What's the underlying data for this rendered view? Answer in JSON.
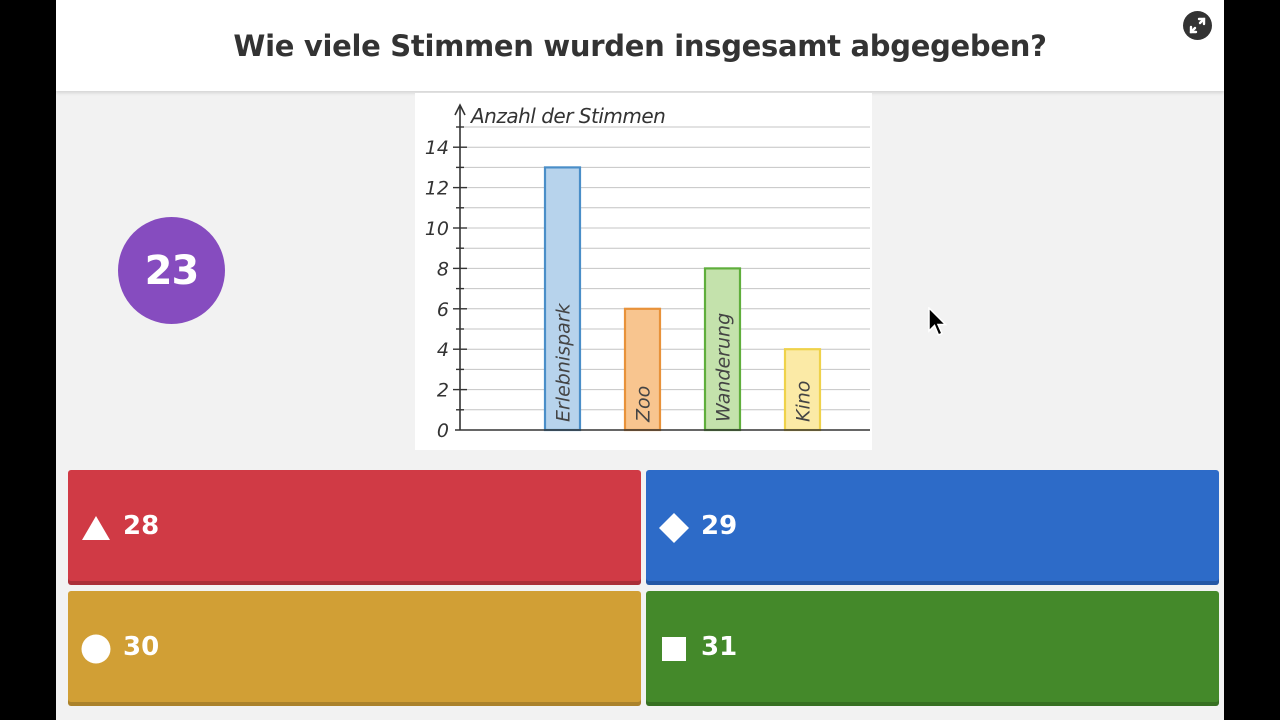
{
  "question": {
    "text": "Wie viele Stimmen wurden insgesamt abgegeben?"
  },
  "timer": {
    "value": "23"
  },
  "toolbar": {
    "fullscreen_icon": "expand-icon"
  },
  "answers": [
    {
      "shape": "triangle-icon",
      "label": "28",
      "color": "#d03a45"
    },
    {
      "shape": "diamond-icon",
      "label": "29",
      "color": "#2d6bc8"
    },
    {
      "shape": "circle-icon",
      "label": "30",
      "color": "#d19f35"
    },
    {
      "shape": "square-icon",
      "label": "31",
      "color": "#44892a"
    }
  ],
  "chart_data": {
    "type": "bar",
    "ylabel": "Anzahl der Stimmen",
    "categories": [
      "Erlebnispark",
      "Zoo",
      "Wanderung",
      "Kino"
    ],
    "values": [
      13,
      6,
      8,
      4
    ],
    "colors": [
      "#b7d3ec",
      "#f8c58f",
      "#c4e2ac",
      "#fbeaa6"
    ],
    "borders": [
      "#4a8ec8",
      "#e8923a",
      "#5fae3c",
      "#efd24a"
    ],
    "ylim": [
      0,
      15
    ],
    "yticks": [
      "0",
      "2",
      "4",
      "6",
      "8",
      "10",
      "12",
      "14"
    ],
    "grid": true
  }
}
